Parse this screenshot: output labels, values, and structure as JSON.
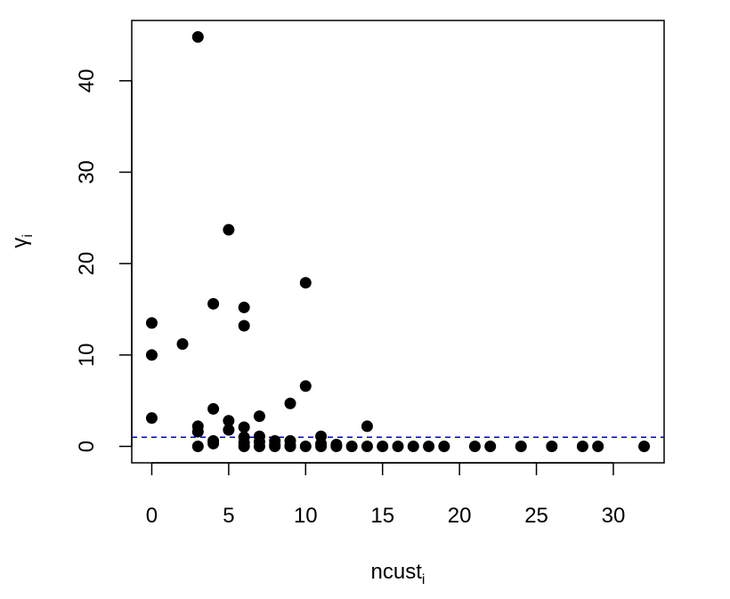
{
  "chart_data": {
    "type": "scatter",
    "xlabel": {
      "main": "ncust",
      "sub": "i"
    },
    "ylabel": {
      "main": "γ",
      "sub": "i"
    },
    "xlim": [
      -1.3,
      33.3
    ],
    "ylim": [
      -1.8,
      46.6
    ],
    "xticks": [
      0,
      5,
      10,
      15,
      20,
      25,
      30
    ],
    "yticks": [
      0,
      10,
      20,
      30,
      40
    ],
    "grid": false,
    "reference_line": {
      "y": 1,
      "color": "#0000CD",
      "style": "dashed"
    },
    "point_color": "#000000",
    "points": [
      {
        "x": 0,
        "y": 13.5
      },
      {
        "x": 0,
        "y": 10.0
      },
      {
        "x": 0,
        "y": 3.1
      },
      {
        "x": 2,
        "y": 11.2
      },
      {
        "x": 3,
        "y": 44.8
      },
      {
        "x": 3,
        "y": 2.2
      },
      {
        "x": 3,
        "y": 1.6
      },
      {
        "x": 3,
        "y": 0.0
      },
      {
        "x": 4,
        "y": 15.6
      },
      {
        "x": 4,
        "y": 4.1
      },
      {
        "x": 4,
        "y": 0.6
      },
      {
        "x": 4,
        "y": 0.3
      },
      {
        "x": 5,
        "y": 23.7
      },
      {
        "x": 5,
        "y": 2.8
      },
      {
        "x": 5,
        "y": 1.8
      },
      {
        "x": 6,
        "y": 15.2
      },
      {
        "x": 6,
        "y": 13.2
      },
      {
        "x": 6,
        "y": 2.1
      },
      {
        "x": 6,
        "y": 1.0
      },
      {
        "x": 6,
        "y": 0.4
      },
      {
        "x": 6,
        "y": 0.0
      },
      {
        "x": 7,
        "y": 3.3
      },
      {
        "x": 7,
        "y": 1.1
      },
      {
        "x": 7,
        "y": 0.5
      },
      {
        "x": 7,
        "y": 0.0
      },
      {
        "x": 8,
        "y": 0.6
      },
      {
        "x": 8,
        "y": 0.2
      },
      {
        "x": 8,
        "y": 0.0
      },
      {
        "x": 9,
        "y": 4.7
      },
      {
        "x": 9,
        "y": 0.6
      },
      {
        "x": 9,
        "y": 0.1
      },
      {
        "x": 9,
        "y": 0.0
      },
      {
        "x": 10,
        "y": 17.9
      },
      {
        "x": 10,
        "y": 6.6
      },
      {
        "x": 10,
        "y": 0.0
      },
      {
        "x": 11,
        "y": 1.1
      },
      {
        "x": 11,
        "y": 0.3
      },
      {
        "x": 11,
        "y": 0.0
      },
      {
        "x": 12,
        "y": 0.2
      },
      {
        "x": 12,
        "y": 0.0
      },
      {
        "x": 13,
        "y": 0.0
      },
      {
        "x": 14,
        "y": 2.2
      },
      {
        "x": 14,
        "y": 0.0
      },
      {
        "x": 15,
        "y": 0.0
      },
      {
        "x": 16,
        "y": 0.0
      },
      {
        "x": 17,
        "y": 0.0
      },
      {
        "x": 18,
        "y": 0.0
      },
      {
        "x": 19,
        "y": 0.0
      },
      {
        "x": 21,
        "y": 0.0
      },
      {
        "x": 22,
        "y": 0.0
      },
      {
        "x": 24,
        "y": 0.0
      },
      {
        "x": 26,
        "y": 0.0
      },
      {
        "x": 28,
        "y": 0.0
      },
      {
        "x": 29,
        "y": 0.0
      },
      {
        "x": 32,
        "y": 0.0
      }
    ]
  }
}
